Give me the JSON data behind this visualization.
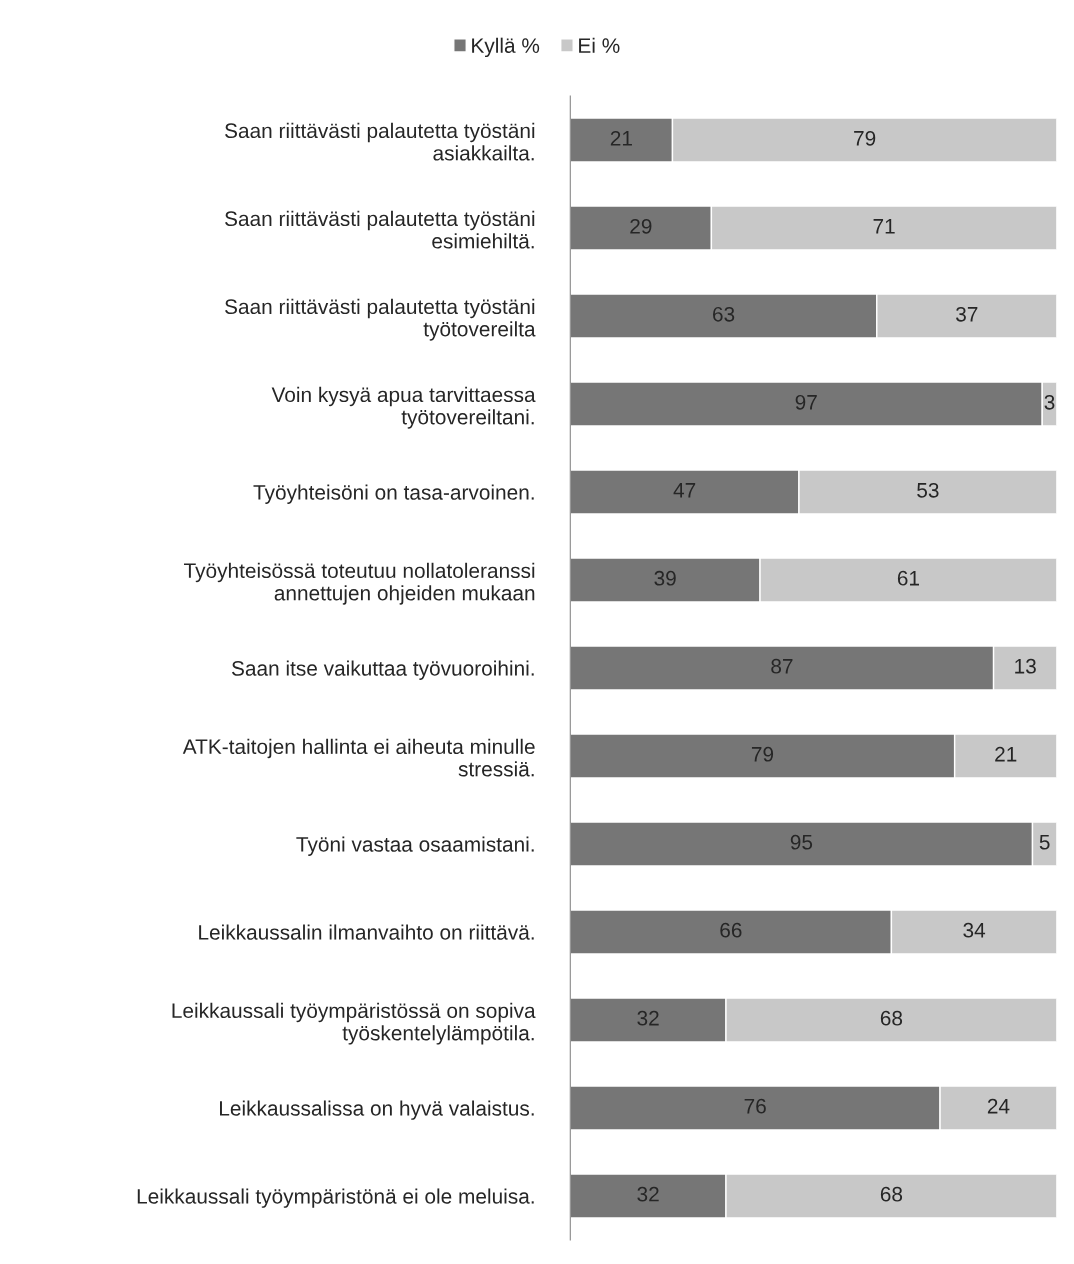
{
  "chart_data": {
    "type": "bar",
    "orientation": "horizontal",
    "stacked": true,
    "data_labels": true,
    "legend": "top",
    "tick_labels": "y",
    "xlim": [
      0,
      100
    ],
    "categories": [
      "Saan riittävästi palautetta työstäni\nasiakkailta.",
      "Saan riittävästi palautetta työstäni\nesimiehiltä.",
      "Saan riittävästi palautetta työstäni\ntyötovereilta",
      "Voin kysyä apua tarvittaessa\ntyötovereiltani.",
      "Työyhteisöni on tasa-arvoinen.",
      "Työyhteisössä toteutuu nollatoleranssi\nannettujen ohjeiden mukaan",
      "Saan itse vaikuttaa työvuoroihini.",
      "ATK-taitojen hallinta ei aiheuta minulle\nstressiä.",
      "Työni vastaa osaamistani.",
      "Leikkaussalin ilmanvaihto on riittävä.",
      "Leikkaussali työympäristössä on sopiva\ntyöskentelylämpötila.",
      "Leikkaussalissa on hyvä valaistus.",
      "Leikkaussali työympäristönä ei ole meluisa."
    ],
    "series": [
      {
        "name": "Kyllä %",
        "color": "#767676",
        "values": [
          21,
          29,
          63,
          97,
          47,
          39,
          87,
          79,
          95,
          66,
          32,
          76,
          32
        ]
      },
      {
        "name": "Ei %",
        "color": "#c8c8c8",
        "values": [
          79,
          71,
          37,
          3,
          53,
          61,
          13,
          21,
          5,
          34,
          68,
          24,
          68
        ]
      }
    ]
  }
}
